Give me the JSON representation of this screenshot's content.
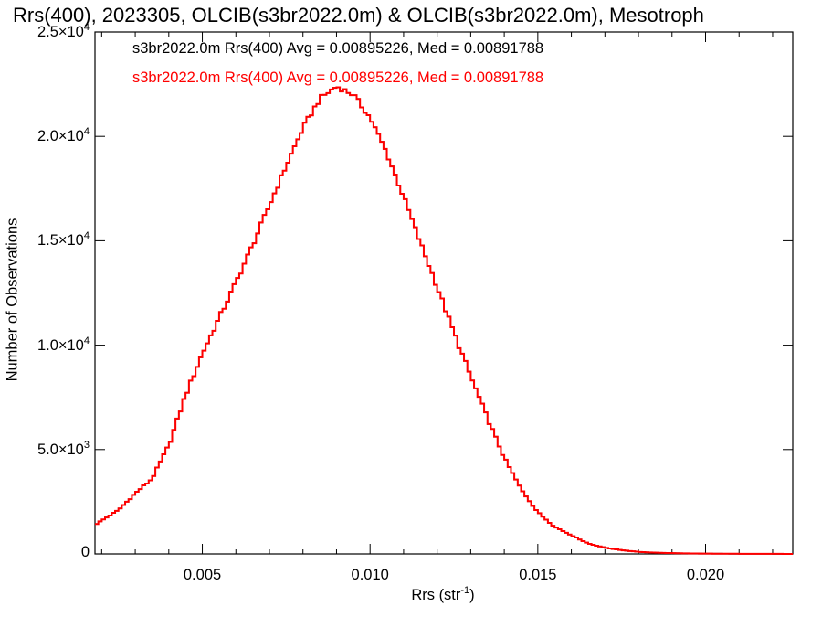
{
  "chart_data": {
    "type": "step-histogram",
    "title": "Rrs(400), 2023305, OLCIB(s3br2022.0m) & OLCIB(s3br2022.0m), Mesotroph",
    "xlabel": "Rrs (str",
    "xlabel_sup": "-1",
    "xlabel_suffix": ")",
    "ylabel": "Number of Observations",
    "xlim": [
      0.0018,
      0.0226
    ],
    "ylim": [
      0,
      25000
    ],
    "x_ticks": [
      {
        "value": 0.005,
        "label": "0.005"
      },
      {
        "value": 0.01,
        "label": "0.010"
      },
      {
        "value": 0.015,
        "label": "0.015"
      },
      {
        "value": 0.02,
        "label": "0.020"
      }
    ],
    "y_ticks": [
      {
        "value": 0,
        "label": "0",
        "exp": ""
      },
      {
        "value": 5000,
        "label": "5.0×10",
        "exp": "3"
      },
      {
        "value": 10000,
        "label": "1.0×10",
        "exp": "4"
      },
      {
        "value": 15000,
        "label": "1.5×10",
        "exp": "4"
      },
      {
        "value": 20000,
        "label": "2.0×10",
        "exp": "4"
      },
      {
        "value": 25000,
        "label": "2.5×10",
        "exp": "4"
      }
    ],
    "series": [
      {
        "name": "s3br2022.0m Rrs(400) Avg = 0.00895226, Med = 0.00891788",
        "color": "#000000",
        "x": [
          0.0018,
          0.0025,
          0.003,
          0.0035,
          0.004,
          0.0045,
          0.005,
          0.0055,
          0.006,
          0.0065,
          0.007,
          0.0075,
          0.008,
          0.0085,
          0.009,
          0.0095,
          0.01,
          0.0105,
          0.011,
          0.0115,
          0.012,
          0.0125,
          0.013,
          0.0135,
          0.014,
          0.0145,
          0.015,
          0.0155,
          0.016,
          0.0165,
          0.017,
          0.0175,
          0.018,
          0.0185,
          0.019,
          0.0195,
          0.02,
          0.021,
          0.022,
          0.0226
        ],
        "y": [
          1400,
          2100,
          2900,
          3600,
          5200,
          7600,
          9600,
          11300,
          13000,
          14800,
          16700,
          18600,
          20400,
          21800,
          22400,
          22000,
          20900,
          19200,
          17100,
          14900,
          12800,
          10600,
          8500,
          6500,
          4600,
          3100,
          2000,
          1300,
          900,
          500,
          300,
          180,
          100,
          60,
          40,
          25,
          15,
          8,
          5,
          0
        ]
      },
      {
        "name": "s3br2022.0m Rrs(400) Avg = 0.00895226, Med = 0.00891788",
        "color": "#ff0000",
        "x": [
          0.0018,
          0.0025,
          0.003,
          0.0035,
          0.004,
          0.0045,
          0.005,
          0.0055,
          0.006,
          0.0065,
          0.007,
          0.0075,
          0.008,
          0.0085,
          0.009,
          0.0095,
          0.01,
          0.0105,
          0.011,
          0.0115,
          0.012,
          0.0125,
          0.013,
          0.0135,
          0.014,
          0.0145,
          0.015,
          0.0155,
          0.016,
          0.0165,
          0.017,
          0.0175,
          0.018,
          0.0185,
          0.019,
          0.0195,
          0.02,
          0.021,
          0.022,
          0.0226
        ],
        "y": [
          1400,
          2100,
          2900,
          3600,
          5200,
          7600,
          9600,
          11300,
          13000,
          14800,
          16700,
          18600,
          20400,
          21800,
          22400,
          22000,
          20900,
          19200,
          17100,
          14900,
          12800,
          10600,
          8500,
          6500,
          4600,
          3100,
          2000,
          1300,
          900,
          500,
          300,
          180,
          100,
          60,
          40,
          25,
          15,
          8,
          5,
          0
        ]
      }
    ],
    "grid": false,
    "legend_position": "top-left"
  }
}
